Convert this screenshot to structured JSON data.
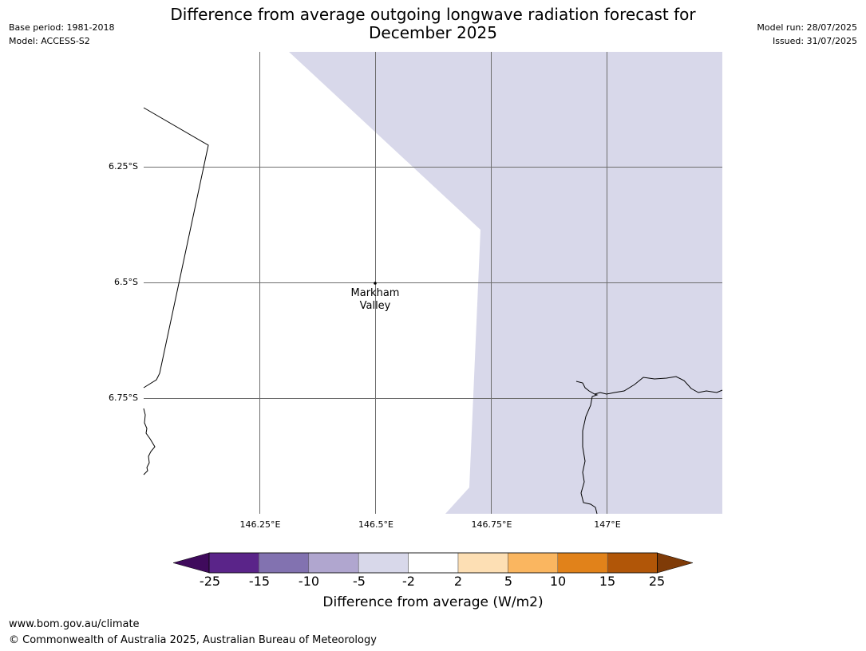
{
  "title_line1": "Difference from average outgoing longwave radiation forecast for",
  "title_line2": "December 2025",
  "meta_left": {
    "base_period": "Base period: 1981-2018",
    "model": "Model: ACCESS-S2"
  },
  "meta_right": {
    "model_run": "Model run: 28/07/2025",
    "issued": "Issued: 31/07/2025"
  },
  "map": {
    "lat_labels": [
      "6.25°S",
      "6.5°S",
      "6.75°S"
    ],
    "lon_labels": [
      "146.25°E",
      "146.5°E",
      "146.75°E",
      "147°E"
    ],
    "place_name_line1": "Markham",
    "place_name_line2": "Valley",
    "shaded_category": "-5 to -2",
    "colors": {
      "shade": "#d8d8ea",
      "grid": "#6e6e6e",
      "coast": "#000000"
    }
  },
  "colorbar": {
    "ticks": [
      "-25",
      "-15",
      "-10",
      "-5",
      "-2",
      "2",
      "5",
      "10",
      "15",
      "25"
    ],
    "colors": [
      "#3f0a5c",
      "#5a2489",
      "#8272b0",
      "#b0a6cf",
      "#d8d8ea",
      "#ffffff",
      "#fddfb4",
      "#fab660",
      "#e1821a",
      "#b15608",
      "#7f3b08"
    ],
    "label": "Difference from average (W/m2)"
  },
  "footer": {
    "url": "www.bom.gov.au/climate",
    "copyright": "© Commonwealth of Australia 2025, Australian Bureau of Meteorology"
  }
}
